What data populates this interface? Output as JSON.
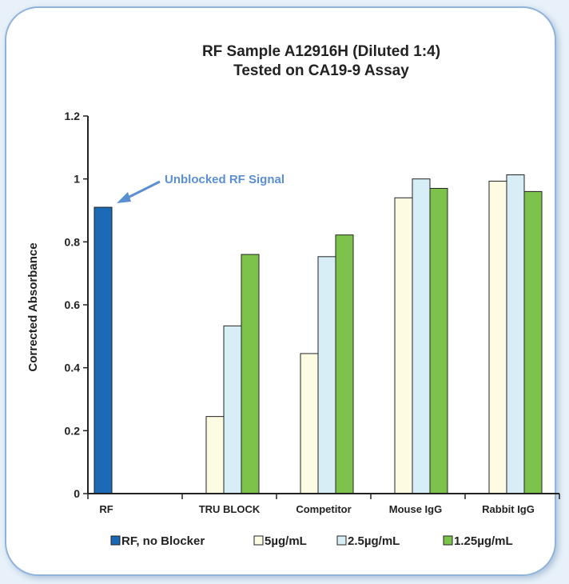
{
  "chart_data": {
    "type": "bar",
    "title": [
      "RF Sample A12916H (Diluted 1:4)",
      "Tested on CA19-9 Assay"
    ],
    "ylabel": "Corrected Absorbance",
    "ylim": [
      0,
      1.2
    ],
    "yticks": [
      "0",
      "0.2",
      "0.4",
      "0.6",
      "0.8",
      "1",
      "1.2"
    ],
    "categories": [
      "RF",
      "TRU BLOCK",
      "Competitor",
      "Mouse IgG",
      "Rabbit IgG"
    ],
    "series": [
      {
        "name": "RF, no Blocker",
        "color": "#1a6ab5",
        "values": [
          0.91,
          null,
          null,
          null,
          null
        ]
      },
      {
        "name": "5µg/mL",
        "color": "#fdfbe1",
        "values": [
          null,
          0.245,
          0.445,
          0.94,
          0.993
        ]
      },
      {
        "name": "2.5µg/mL",
        "color": "#d7eef7",
        "values": [
          null,
          0.533,
          0.753,
          1.0,
          1.013
        ]
      },
      {
        "name": "1.25µg/mL",
        "color": "#7dc24a",
        "values": [
          null,
          0.76,
          0.822,
          0.97,
          0.96
        ]
      }
    ],
    "annotation": {
      "text": "Unblocked RF Signal",
      "color": "#5b8fd1"
    },
    "legend_position": "bottom",
    "grid": false
  }
}
